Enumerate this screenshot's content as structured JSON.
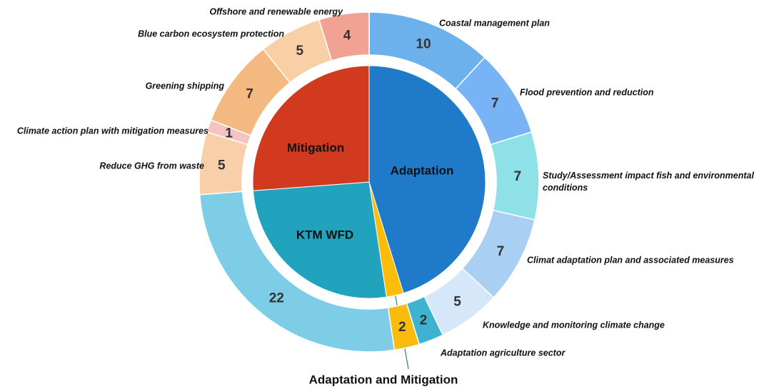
{
  "chart_data": {
    "type": "sunburst",
    "groups": [
      {
        "name": "Adaptation",
        "color": "#1f7bc9",
        "value": 38,
        "children": [
          {
            "name": "Coastal management plan",
            "color": "#6cb0ec",
            "value": 10
          },
          {
            "name": "Flood prevention and reduction",
            "color": "#77b3f5",
            "value": 7
          },
          {
            "name": "Study/Assessment impact fish and environmental conditions",
            "color": "#8fe1e8",
            "value": 7
          },
          {
            "name": "Climat adaptation plan and associated measures",
            "color": "#a9cff2",
            "value": 7
          },
          {
            "name": "Knowledge and monitoring climate change",
            "color": "#d5e7f8",
            "value": 5
          },
          {
            "name": "Adaptation agriculture sector",
            "color": "#3eb3d1",
            "value": 2
          }
        ]
      },
      {
        "name": "Adaptation and Mitigation",
        "color": "#fbbd08",
        "value": 2,
        "children": [
          {
            "color": "#f9bb0c",
            "value": 2
          }
        ]
      },
      {
        "name": "KTM WFD",
        "color": "#22a3bd",
        "value": 22,
        "children": [
          {
            "color": "#7dcde6",
            "value": 22
          }
        ]
      },
      {
        "name": "Mitigation",
        "color": "#d13a1e",
        "value": 22,
        "children": [
          {
            "name": "Reduce GHG from waste",
            "color": "#f8cfa8",
            "value": 5
          },
          {
            "name": "Climate action plan with mitigation measures",
            "color": "#f5c3c0",
            "value": 1
          },
          {
            "name": "Greening shipping",
            "color": "#f4b981",
            "value": 7
          },
          {
            "name": "Blue carbon ecosystem protection",
            "color": "#f9cfa6",
            "value": 5
          },
          {
            "name": "Offshore and renewable energy",
            "color": "#f2a292",
            "value": 4
          }
        ]
      }
    ]
  }
}
